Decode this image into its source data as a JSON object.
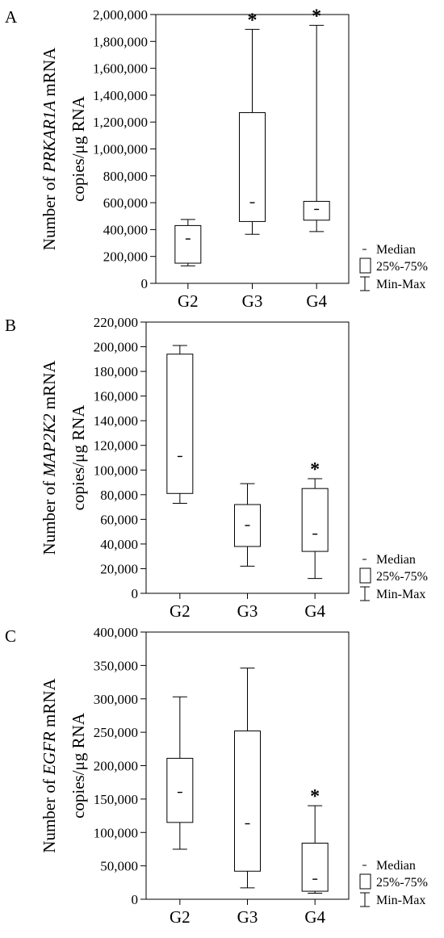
{
  "chart_data": [
    {
      "type": "boxplot",
      "panel_label": "A",
      "ylabel_prefix": "Number of ",
      "gene": "PRKAR1A",
      "ylabel_suffix": " mRNA",
      "ylabel_line2": "copies/μg RNA",
      "categories": [
        "G2",
        "G3",
        "G4"
      ],
      "ylim": [
        0,
        2000000
      ],
      "yticks": [
        0,
        200000,
        400000,
        600000,
        800000,
        1000000,
        1200000,
        1400000,
        1600000,
        1800000,
        2000000
      ],
      "ytick_labels": [
        "0",
        "200,000",
        "400,000",
        "600,000",
        "800,000",
        "1,000,000",
        "1,200,000",
        "1,400,000",
        "1,600,000",
        "1,800,000",
        "2,000,000"
      ],
      "boxes": [
        {
          "min": 130000,
          "q1": 150000,
          "median": 330000,
          "q3": 430000,
          "max": 475000,
          "significant": false
        },
        {
          "min": 365000,
          "q1": 460000,
          "median": 600000,
          "q3": 1270000,
          "max": 1890000,
          "significant": true
        },
        {
          "min": 385000,
          "q1": 470000,
          "median": 550000,
          "q3": 610000,
          "max": 1920000,
          "significant": true
        }
      ],
      "significance_marker": "*",
      "legend": {
        "median": "Median",
        "box": "25%-75%",
        "whisker": "Min-Max"
      }
    },
    {
      "type": "boxplot",
      "panel_label": "B",
      "ylabel_prefix": "Number of ",
      "gene": "MAP2K2",
      "ylabel_suffix": " mRNA",
      "ylabel_line2": "copies/μg RNA",
      "categories": [
        "G2",
        "G3",
        "G4"
      ],
      "ylim": [
        0,
        220000
      ],
      "yticks": [
        0,
        20000,
        40000,
        60000,
        80000,
        100000,
        120000,
        140000,
        160000,
        180000,
        200000,
        220000
      ],
      "ytick_labels": [
        "0",
        "20,000",
        "40,000",
        "60,000",
        "80,000",
        "100,000",
        "120,000",
        "140,000",
        "160,000",
        "180,000",
        "200,000",
        "220,000"
      ],
      "boxes": [
        {
          "min": 73000,
          "q1": 81000,
          "median": 111000,
          "q3": 194000,
          "max": 201000,
          "significant": false
        },
        {
          "min": 22000,
          "q1": 38000,
          "median": 55000,
          "q3": 72000,
          "max": 89000,
          "significant": false
        },
        {
          "min": 12000,
          "q1": 34000,
          "median": 48000,
          "q3": 85000,
          "max": 93000,
          "significant": true
        }
      ],
      "significance_marker": "*",
      "legend": {
        "median": "Median",
        "box": "25%-75%",
        "whisker": "Min-Max"
      }
    },
    {
      "type": "boxplot",
      "panel_label": "C",
      "ylabel_prefix": "Number of ",
      "gene": "EGFR",
      "ylabel_suffix": " mRNA",
      "ylabel_line2": "copies/μg RNA",
      "categories": [
        "G2",
        "G3",
        "G4"
      ],
      "ylim": [
        0,
        400000
      ],
      "yticks": [
        0,
        50000,
        100000,
        150000,
        200000,
        250000,
        300000,
        350000,
        400000
      ],
      "ytick_labels": [
        "0",
        "50,000",
        "100,000",
        "150,000",
        "200,000",
        "250,000",
        "300,000",
        "350,000",
        "400,000"
      ],
      "boxes": [
        {
          "min": 75000,
          "q1": 115000,
          "median": 160000,
          "q3": 211000,
          "max": 303000,
          "significant": false
        },
        {
          "min": 17000,
          "q1": 42000,
          "median": 113000,
          "q3": 252000,
          "max": 346000,
          "significant": false
        },
        {
          "min": 9000,
          "q1": 12000,
          "median": 30000,
          "q3": 84000,
          "max": 140000,
          "significant": true
        }
      ],
      "significance_marker": "*",
      "legend": {
        "median": "Median",
        "box": "25%-75%",
        "whisker": "Min-Max"
      }
    }
  ]
}
